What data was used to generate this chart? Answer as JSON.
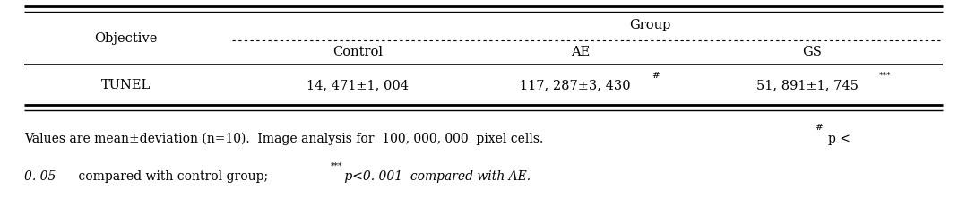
{
  "group_label": "Group",
  "obj_label": "Objective",
  "row_label": "TUNEL",
  "sub_headers": [
    "Control",
    "AE",
    "GS"
  ],
  "control_val": "14, 471±1, 004",
  "ae_val": "117, 287±3, 430",
  "ae_sup": "#",
  "gs_val": "51, 891±1, 745",
  "gs_sup": "***",
  "note1_main": "Values are mean±deviation (n=10).  Image analysis for  100, 000, 000  pixel cells.  ",
  "note1_sup": "#",
  "note1_end": "p <",
  "note2_italic1": "0. 05",
  "note2_mid": " compared with control group;  ",
  "note2_sup": "***",
  "note2_italic2": " p<0. 001  compared with AE.",
  "bg_color": "#ffffff",
  "text_color": "#000000",
  "fs_main": 10.5,
  "fs_note": 10.0,
  "fs_sup": 7.5
}
